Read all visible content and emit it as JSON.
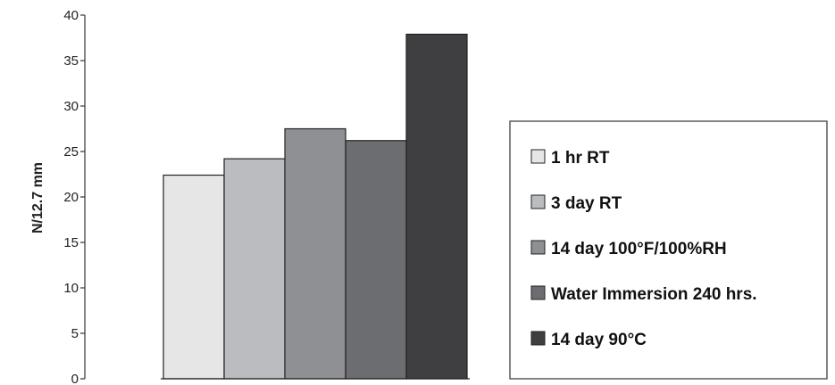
{
  "chart_data": {
    "type": "bar",
    "title": "",
    "xlabel": "",
    "ylabel": "N/12.7 mm",
    "ylim": [
      0,
      40
    ],
    "yticks": [
      0,
      5,
      10,
      15,
      20,
      25,
      30,
      35,
      40
    ],
    "grid": false,
    "legend_position": "right",
    "series": [
      {
        "name": "1 hr RT",
        "value": 22.4,
        "color": "#e6e6e6"
      },
      {
        "name": "3 day RT",
        "value": 24.2,
        "color": "#bbbcc0"
      },
      {
        "name": "14 day 100°F/100%RH",
        "value": 27.5,
        "color": "#8f9094"
      },
      {
        "name": "Water Immersion 240 hrs.",
        "value": 26.2,
        "color": "#6c6d71"
      },
      {
        "name": "14 day 90°C",
        "value": 37.9,
        "color": "#3f3f41"
      }
    ]
  }
}
